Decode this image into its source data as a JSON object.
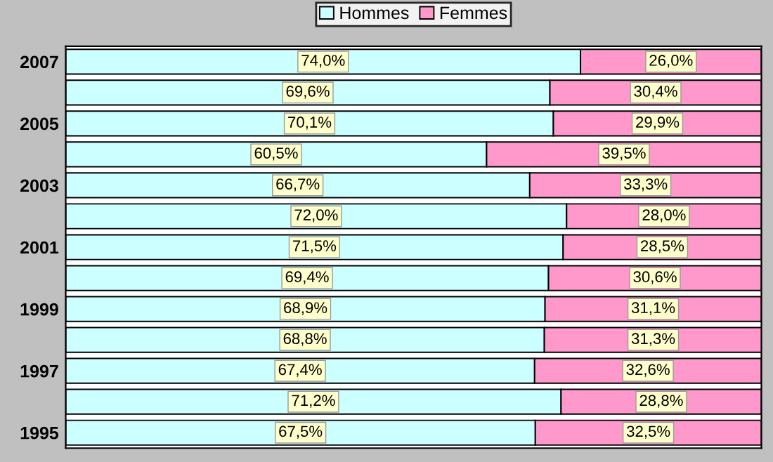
{
  "chart_data": {
    "type": "bar",
    "orientation": "horizontal",
    "stacked": true,
    "categories": [
      "2007",
      null,
      "2005",
      null,
      "2003",
      null,
      "2001",
      null,
      "1999",
      null,
      "1997",
      null,
      "1995"
    ],
    "xlim": [
      0,
      100
    ],
    "tick_labels": "y",
    "grid": false,
    "legend": "top",
    "series": [
      {
        "name": "Hommes",
        "color": "#ccffff",
        "values": [
          74.0,
          69.6,
          70.1,
          60.5,
          66.7,
          72.0,
          71.5,
          69.4,
          68.9,
          68.8,
          67.4,
          71.2,
          67.5
        ],
        "value_labels": [
          "74,0%",
          "69,6%",
          "70,1%",
          "60,5%",
          "66,7%",
          "72,0%",
          "71,5%",
          "69,4%",
          "68,9%",
          "68,8%",
          "67,4%",
          "71,2%",
          "67,5%"
        ]
      },
      {
        "name": "Femmes",
        "color": "#ff99cc",
        "values": [
          26.0,
          30.4,
          29.9,
          39.5,
          33.3,
          28.0,
          28.5,
          30.6,
          31.1,
          31.3,
          32.6,
          28.8,
          32.5
        ],
        "value_labels": [
          "26,0%",
          "30,4%",
          "29,9%",
          "39,5%",
          "33,3%",
          "28,0%",
          "28,5%",
          "30,6%",
          "31,1%",
          "31,3%",
          "32,6%",
          "28,8%",
          "32,5%"
        ]
      }
    ]
  }
}
